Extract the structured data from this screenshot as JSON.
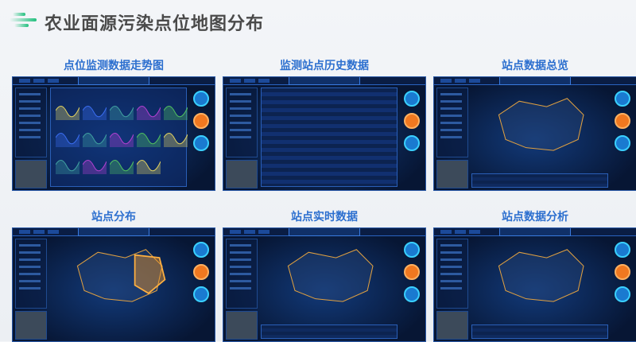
{
  "page_title": "农业面源污染点位地图分布",
  "cards": [
    {
      "title": "点位监测数据走势图",
      "kind": "charts"
    },
    {
      "title": "监测站点历史数据",
      "kind": "table"
    },
    {
      "title": "站点数据总览",
      "kind": "overview"
    },
    {
      "title": "站点分布",
      "kind": "map"
    },
    {
      "title": "站点实时数据",
      "kind": "map"
    },
    {
      "title": "站点数据分析",
      "kind": "analysis"
    }
  ],
  "colors": {
    "title": "#4a4a4a",
    "card_title": "#2c6fcf",
    "accent": "#22c07e",
    "dashboard_bg": "#071634"
  }
}
